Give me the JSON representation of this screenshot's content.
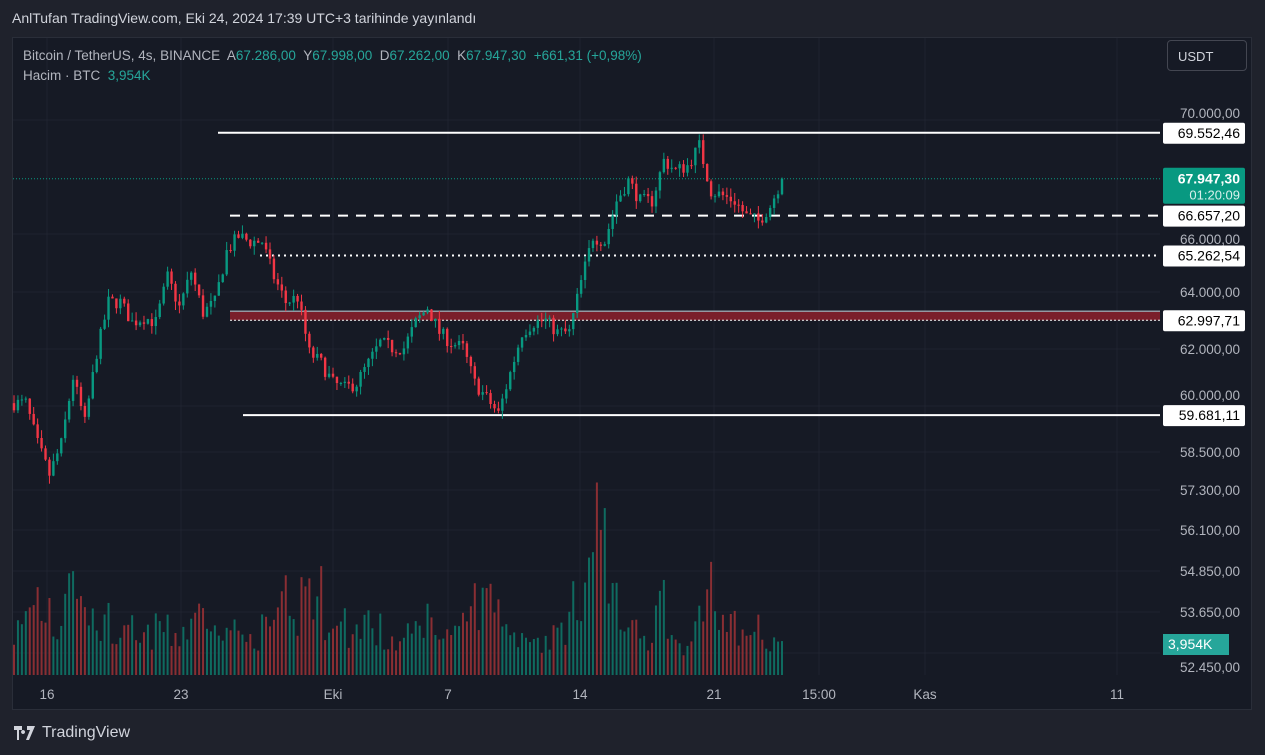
{
  "published": "AnlTufan TradingView.com, Eki 24, 2024 17:39 UTC+3 tarihinde yayınlandı",
  "legend": {
    "symbol": "Bitcoin / TetherUS, 4s, BINANCE",
    "open_label": "A",
    "open": "67.286,00",
    "high_label": "Y",
    "high": "67.998,00",
    "low_label": "D",
    "low": "67.262,00",
    "close_label": "K",
    "close": "67.947,30",
    "change": "+661,31 (+0,98%)",
    "volume_label": "Hacim · BTC",
    "volume": "3,954K"
  },
  "currency_button": "USDT",
  "footer_brand": "TradingView",
  "colors": {
    "up": "#089981",
    "down": "#f23645",
    "zone": "#7a1f2a",
    "bg": "#161a25"
  },
  "chart_data": {
    "type": "candlestick",
    "title": "Bitcoin / TetherUS, 4s, BINANCE",
    "ylim": [
      56000,
      71000
    ],
    "price_ticks": [
      "70.000,00",
      "66.000,00",
      "64.000,00",
      "62.000,00",
      "60.000,00",
      "58.500,00",
      "57.300,00",
      "56.100,00",
      "54.850,00",
      "53.650,00",
      "52.450,00"
    ],
    "x_ticks": [
      "16",
      "23",
      "Eki",
      "7",
      "14",
      "21",
      "15:00",
      "Kas",
      "11"
    ],
    "close_path": [
      60100,
      60100,
      58670,
      57600,
      58670,
      61000,
      59400,
      61860,
      63630,
      63630,
      62920,
      63100,
      62920,
      64510,
      63450,
      64690,
      63270,
      63630,
      65400,
      65930,
      65750,
      65750,
      64510,
      63630,
      63800,
      61860,
      61500,
      60800,
      60620,
      60800,
      61500,
      62210,
      62030,
      62030,
      62920,
      63450,
      62570,
      62210,
      62030,
      60800,
      60270,
      59730,
      61150,
      62570,
      62920,
      62990,
      62570,
      62570,
      64340,
      65930,
      65750,
      67170,
      67880,
      67170,
      67170,
      68580,
      68230,
      68400,
      69100,
      67520,
      67350,
      67170,
      66640,
      66460,
      66990,
      67947.3
    ],
    "volume_k": [
      5,
      6,
      9,
      8,
      6,
      14,
      9,
      7,
      6,
      5,
      5,
      4,
      5,
      6,
      4,
      6,
      9,
      5,
      7,
      6,
      4,
      5,
      6,
      8,
      6,
      11,
      9,
      7,
      6,
      5,
      7,
      5,
      4,
      4,
      5,
      7,
      6,
      5,
      5,
      8,
      9,
      10,
      6,
      5,
      5,
      4,
      5,
      6,
      9,
      14,
      20,
      9,
      7,
      6,
      5,
      8,
      5,
      4,
      6,
      11,
      7,
      6,
      5,
      5,
      4,
      3.954
    ],
    "horizontal_levels": [
      {
        "value": 69552.46,
        "label": "69.552,46",
        "style": "solid"
      },
      {
        "value": 66657.2,
        "label": "66.657,20",
        "style": "dashed"
      },
      {
        "value": 65262.54,
        "label": "65.262,54",
        "style": "dotted"
      },
      {
        "value": 62997.71,
        "label": "62.997,71",
        "style": "zone"
      },
      {
        "value": 59681.11,
        "label": "59.681,11",
        "style": "solid"
      }
    ],
    "last_price": {
      "value": 67947.3,
      "label": "67.947,30",
      "countdown": "01:20:09"
    },
    "volume_last_label": "3,954K"
  }
}
